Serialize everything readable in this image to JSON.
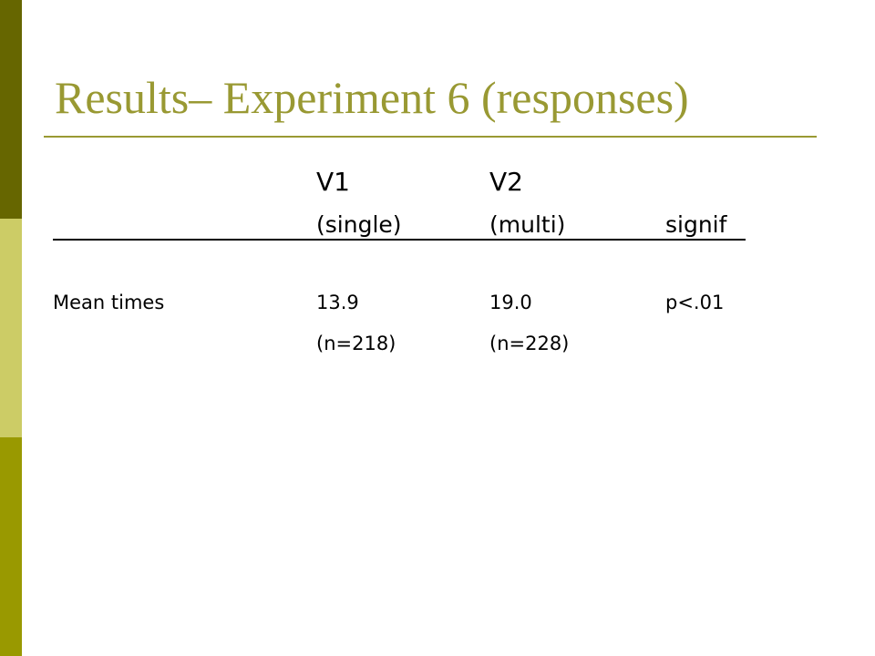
{
  "title": "Results– Experiment 6 (responses)",
  "table": {
    "header_row_1": [
      "V1",
      "V2"
    ],
    "header_row_2": [
      "(single)",
      "(multi)",
      "signif"
    ],
    "rows": [
      {
        "label": "Mean times",
        "cells": [
          "13.9",
          "19.0",
          "p<.01"
        ]
      },
      {
        "cells": [
          "(n=218)",
          "(n=228)"
        ]
      }
    ]
  }
}
